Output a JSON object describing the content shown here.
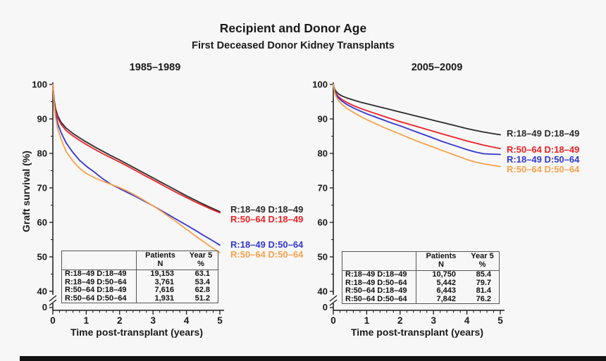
{
  "title": "Recipient and Donor Age",
  "subtitle": "First Deceased Donor Kidney Transplants",
  "axes": {
    "y_label": "Graft survival (%)",
    "x_label": "Time post-transplant (years)",
    "y_ticks": [
      100,
      90,
      80,
      70,
      60,
      50,
      40
    ],
    "y_break_label": "0",
    "x_ticks": [
      0,
      1,
      2,
      3,
      4,
      5
    ]
  },
  "colors": {
    "black": "#2b2b2b",
    "red": "#ed2024",
    "blue": "#3236d0",
    "orange": "#f9a24b",
    "axis": "#1a1a1a",
    "table_border": "#555555",
    "background": "#f7f7f7",
    "bottom_bar": "#121212"
  },
  "chart_data": [
    {
      "type": "line",
      "title": "1985–1989",
      "xlabel": "Time post-transplant (years)",
      "ylabel": "Graft survival (%)",
      "xlim": [
        0,
        5
      ],
      "ylim": [
        40,
        100
      ],
      "axis_break_to_zero": true,
      "x": [
        0,
        0.04,
        0.08,
        0.15,
        0.25,
        0.4,
        0.6,
        0.8,
        1,
        1.25,
        1.5,
        1.75,
        2,
        2.25,
        2.5,
        2.75,
        3,
        3.25,
        3.5,
        3.75,
        4,
        4.25,
        4.5,
        4.75,
        5
      ],
      "series": [
        {
          "name": "R:18–49 D:18–49",
          "color": "black",
          "year5": 63.1,
          "y": [
            100,
            95.5,
            93,
            90.8,
            89,
            87.3,
            85.8,
            84.5,
            83.3,
            81.9,
            80.6,
            79.3,
            78.1,
            76.8,
            75.5,
            74.2,
            72.9,
            71.6,
            70.3,
            69,
            67.7,
            66.5,
            65.3,
            64.2,
            63.1
          ]
        },
        {
          "name": "R:50–64 D:18–49",
          "color": "red",
          "year5": 62.8,
          "y": [
            100,
            95,
            92.5,
            90.2,
            88.4,
            86.6,
            85.1,
            83.8,
            82.6,
            81.2,
            79.9,
            78.7,
            77.5,
            76.2,
            74.9,
            73.6,
            72.3,
            71,
            69.7,
            68.4,
            67.2,
            66,
            64.9,
            63.8,
            62.8
          ]
        },
        {
          "name": "R:18–49 D:50–64",
          "color": "blue",
          "year5": 53.4,
          "y": [
            100,
            94.5,
            91.5,
            88.5,
            86,
            83,
            80.3,
            78,
            76.3,
            74.5,
            72.6,
            71,
            69.8,
            68.6,
            67.4,
            66.1,
            64.8,
            63.4,
            62,
            60.6,
            59.2,
            57.8,
            56.3,
            54.9,
            53.4
          ]
        },
        {
          "name": "R:50–64 D:50–64",
          "color": "orange",
          "year5": 51.2,
          "y": [
            100,
            94,
            90.5,
            87,
            84,
            80.5,
            77.8,
            75.7,
            74.2,
            72.9,
            71.9,
            71,
            70.1,
            69,
            67.7,
            66.3,
            64.8,
            63.2,
            61.5,
            59.8,
            58,
            56.2,
            54.5,
            52.8,
            51.2
          ]
        }
      ],
      "table": {
        "header": [
          [
            "Patients",
            "N"
          ],
          [
            "Year 5",
            "%"
          ]
        ],
        "rows": [
          {
            "label": "R:18–49 D:18–49",
            "patients_n": "19,153",
            "year5_pct": "63.1"
          },
          {
            "label": "R:18–49 D:50–64",
            "patients_n": "3,761",
            "year5_pct": "53.4"
          },
          {
            "label": "R:50–64 D:18–49",
            "patients_n": "7,616",
            "year5_pct": "62.8"
          },
          {
            "label": "R:50–64 D:50–64",
            "patients_n": "1,931",
            "year5_pct": "51.2"
          }
        ]
      }
    },
    {
      "type": "line",
      "title": "2005–2009",
      "xlabel": "Time post-transplant (years)",
      "ylabel": "Graft survival (%)",
      "xlim": [
        0,
        5
      ],
      "ylim": [
        40,
        100
      ],
      "axis_break_to_zero": true,
      "x": [
        0,
        0.04,
        0.08,
        0.15,
        0.25,
        0.4,
        0.6,
        0.8,
        1,
        1.25,
        1.5,
        1.75,
        2,
        2.25,
        2.5,
        2.75,
        3,
        3.25,
        3.5,
        3.75,
        4,
        4.25,
        4.5,
        4.75,
        5
      ],
      "series": [
        {
          "name": "R:18–49 D:18–49",
          "color": "black",
          "year5": 85.4,
          "y": [
            100,
            98.6,
            98,
            97.3,
            96.7,
            96.1,
            95.5,
            94.9,
            94.4,
            93.8,
            93.2,
            92.6,
            92,
            91.4,
            90.8,
            90.2,
            89.6,
            89,
            88.4,
            87.8,
            87.2,
            86.7,
            86.2,
            85.8,
            85.4
          ]
        },
        {
          "name": "R:50–64 D:18–49",
          "color": "red",
          "year5": 81.4,
          "y": [
            100,
            98.2,
            97.4,
            96.5,
            95.7,
            94.8,
            93.9,
            93.1,
            92.4,
            91.6,
            90.8,
            90,
            89.2,
            88.5,
            87.8,
            87.1,
            86.4,
            85.7,
            85,
            84.3,
            83.6,
            83,
            82.4,
            81.9,
            81.4
          ]
        },
        {
          "name": "R:18–49 D:50–64",
          "color": "blue",
          "year5": 79.7,
          "y": [
            100,
            98,
            97.1,
            96.1,
            95.2,
            94.2,
            93.2,
            92.3,
            91.5,
            90.6,
            89.7,
            88.8,
            88,
            87.1,
            86.2,
            85.3,
            84.4,
            83.5,
            82.7,
            81.9,
            81.1,
            80.4,
            79.9,
            79.8,
            79.7
          ]
        },
        {
          "name": "R:50–64 D:50–64",
          "color": "orange",
          "year5": 76.2,
          "y": [
            100,
            97.7,
            96.6,
            95.4,
            94.3,
            93.1,
            91.9,
            90.8,
            89.8,
            88.7,
            87.6,
            86.6,
            85.6,
            84.6,
            83.6,
            82.7,
            81.8,
            80.9,
            80,
            79.1,
            78.2,
            77.5,
            77,
            76.6,
            76.2
          ]
        }
      ],
      "table": {
        "header": [
          [
            "Patients",
            "N"
          ],
          [
            "Year 5",
            "%"
          ]
        ],
        "rows": [
          {
            "label": "R:18–49 D:18–49",
            "patients_n": "10,750",
            "year5_pct": "85.4"
          },
          {
            "label": "R:18–49 D:50–64",
            "patients_n": "5,442",
            "year5_pct": "79.7"
          },
          {
            "label": "R:50–64 D:18–49",
            "patients_n": "6,443",
            "year5_pct": "81.4"
          },
          {
            "label": "R:50–64 D:50–64",
            "patients_n": "7,842",
            "year5_pct": "76.2"
          }
        ]
      }
    }
  ]
}
